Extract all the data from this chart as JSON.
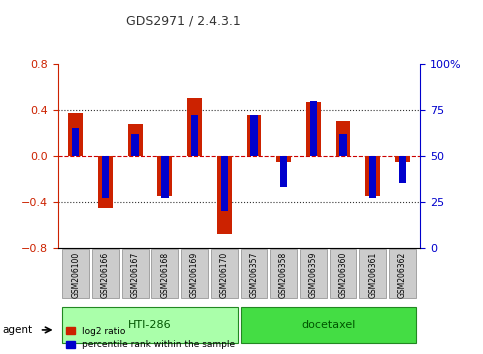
{
  "title": "GDS2971 / 2.4.3.1",
  "samples": [
    "GSM206100",
    "GSM206166",
    "GSM206167",
    "GSM206168",
    "GSM206169",
    "GSM206170",
    "GSM206357",
    "GSM206358",
    "GSM206359",
    "GSM206360",
    "GSM206361",
    "GSM206362"
  ],
  "log2_ratio": [
    0.37,
    -0.45,
    0.28,
    -0.35,
    0.5,
    -0.68,
    0.35,
    -0.05,
    0.47,
    0.3,
    -0.35,
    -0.05
  ],
  "percentile_rank": [
    65,
    27,
    62,
    27,
    72,
    20,
    72,
    33,
    80,
    62,
    27,
    35
  ],
  "groups": [
    {
      "label": "HTI-286",
      "start": 0,
      "end": 5,
      "color": "#90EE90"
    },
    {
      "label": "docetaxel",
      "start": 6,
      "end": 11,
      "color": "#00CC00"
    }
  ],
  "ylim": [
    -0.8,
    0.8
  ],
  "y2lim": [
    0,
    100
  ],
  "yticks_left": [
    -0.8,
    -0.4,
    0,
    0.4,
    0.8
  ],
  "yticks_right": [
    0,
    25,
    50,
    75,
    100
  ],
  "bar_color_red": "#CC2200",
  "bar_color_blue": "#0000CC",
  "hline_color": "#CC0000",
  "dotted_color": "#333333",
  "bg_color": "#FFFFFF",
  "plot_bg": "#FFFFFF",
  "title_color": "#333333",
  "left_axis_color": "#CC2200",
  "right_axis_color": "#0000CC",
  "bar_width": 0.5,
  "blue_bar_width": 0.25,
  "group_light_green": "#AAFFAA",
  "group_dark_green": "#44DD44"
}
